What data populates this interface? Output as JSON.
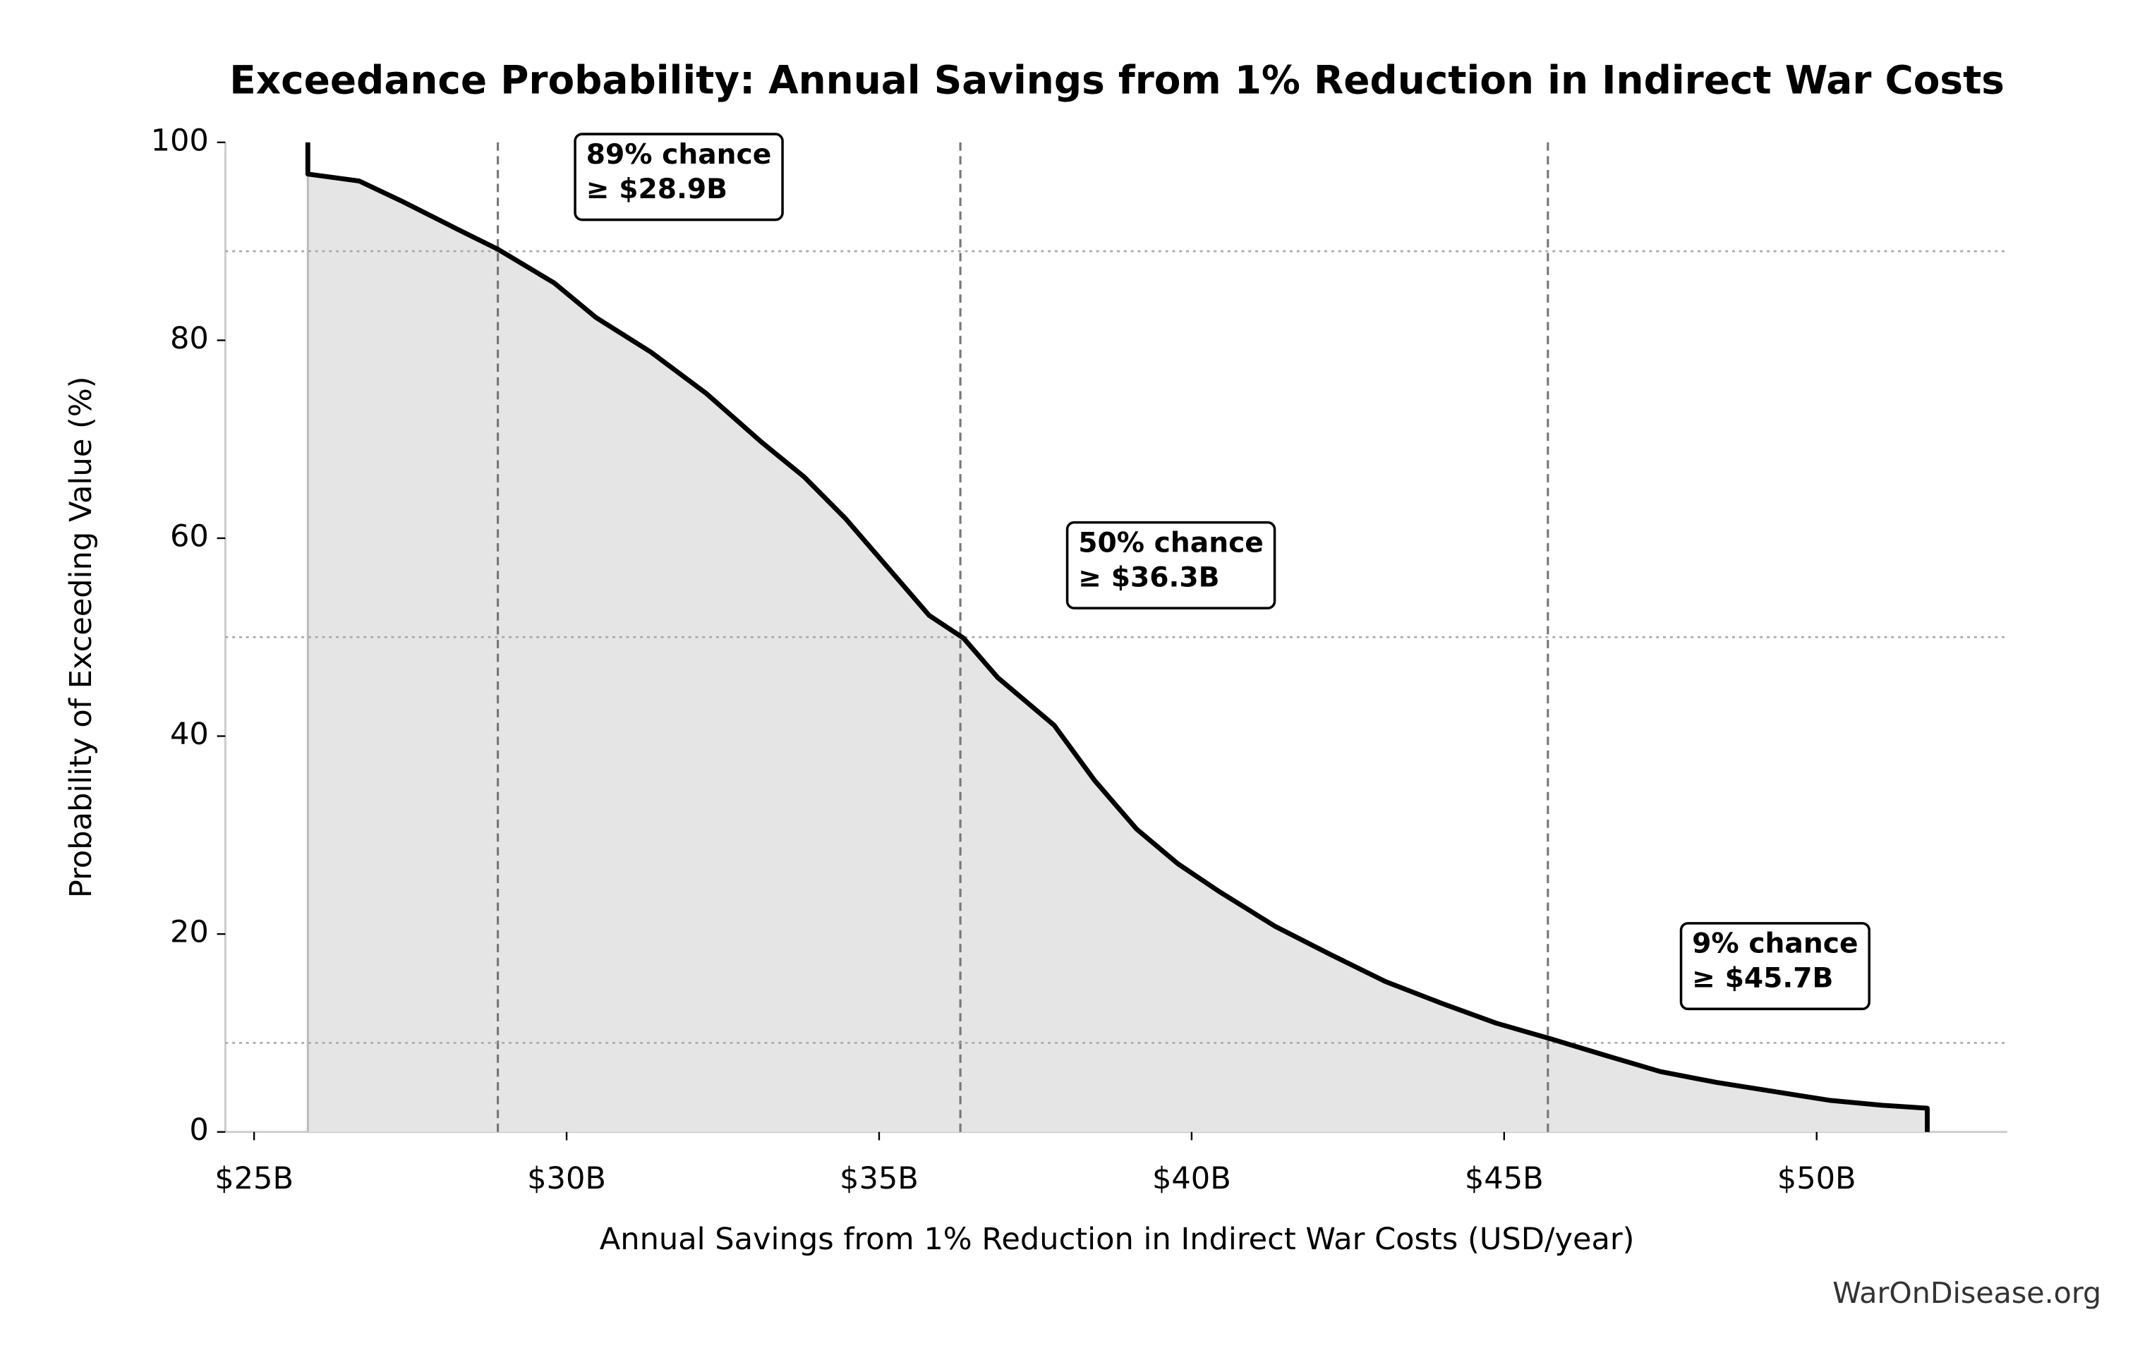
{
  "chart_data": {
    "type": "line",
    "title": "Exceedance Probability: Annual Savings from 1% Reduction in Indirect War Costs",
    "x_label": "Annual Savings from 1% Reduction in Indirect War Costs (USD/year)",
    "y_label": "Probability of Exceeding Value (%)",
    "watermark": "WarOnDisease.org",
    "x": [
      25.86,
      25.86,
      26.68,
      27.35,
      28.23,
      28.9,
      29.8,
      30.47,
      31.35,
      32.24,
      33.12,
      33.8,
      34.46,
      35.13,
      35.8,
      36.35,
      36.9,
      37.8,
      38.45,
      39.12,
      39.78,
      40.44,
      41.33,
      42.2,
      43.1,
      44.0,
      44.87,
      45.75,
      46.64,
      47.5,
      48.4,
      49.3,
      50.2,
      51.04,
      51.77,
      51.77
    ],
    "values": [
      100,
      96.8,
      96.1,
      94.1,
      91.3,
      89.2,
      85.8,
      82.3,
      78.8,
      74.6,
      69.7,
      66.2,
      62.0,
      57.1,
      52.2,
      49.9,
      45.9,
      41.1,
      35.5,
      30.6,
      27.1,
      24.3,
      20.8,
      18.0,
      15.2,
      13.0,
      11.0,
      9.4,
      7.7,
      6.1,
      5.0,
      4.1,
      3.2,
      2.7,
      2.4,
      0
    ],
    "color": "#000000",
    "fill_color": "#e5e5e5",
    "xlim": [
      24.54,
      53.05
    ],
    "ylim": [
      0,
      100
    ],
    "xticks": [
      {
        "value": 25,
        "label": "$25B"
      },
      {
        "value": 30,
        "label": "$30B"
      },
      {
        "value": 35,
        "label": "$35B"
      },
      {
        "value": 40,
        "label": "$40B"
      },
      {
        "value": 45,
        "label": "$45B"
      },
      {
        "value": 50,
        "label": "$50B"
      }
    ],
    "yticks": [
      0,
      20,
      40,
      60,
      80,
      100
    ],
    "annotations": [
      {
        "x": 28.9,
        "y": 89,
        "lines": [
          "89% chance",
          "≥ $28.9B"
        ]
      },
      {
        "x": 36.3,
        "y": 50,
        "lines": [
          "50% chance",
          "≥ $36.3B"
        ]
      },
      {
        "x": 45.7,
        "y": 9,
        "lines": [
          "9% chance",
          "≥ $45.7B"
        ]
      }
    ]
  }
}
